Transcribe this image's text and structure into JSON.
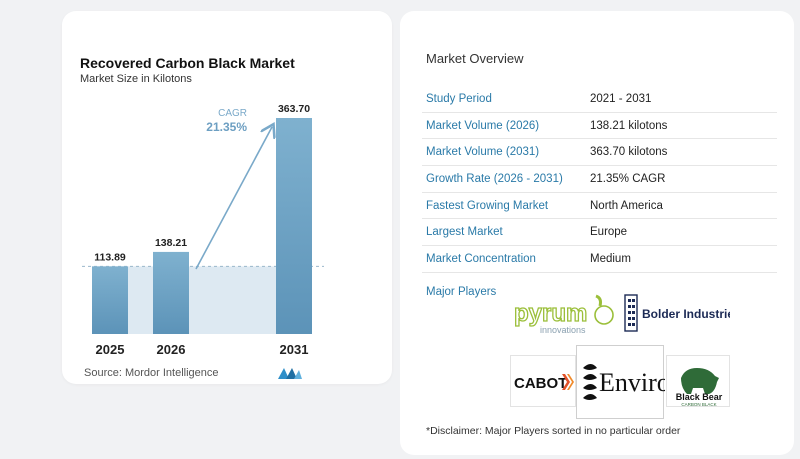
{
  "chart": {
    "title": "Recovered Carbon Black Market",
    "subtitle": "Market Size in Kilotons",
    "cagr_label": "CAGR",
    "cagr_value": "21.35%",
    "source": "Source:  Mordor Intelligence"
  },
  "chart_data": {
    "type": "bar",
    "categories": [
      "2025",
      "2026",
      "2031"
    ],
    "values": [
      113.89,
      138.21,
      363.7
    ],
    "value_labels": [
      "113.89",
      "138.21",
      "363.70"
    ],
    "ylim": [
      0,
      363.7
    ],
    "grid": false,
    "colors": {
      "bar_top": "#7fb1cf",
      "bar_bottom": "#5c93b8",
      "band": "#dde9f2",
      "arrow": "#7aa9c9"
    }
  },
  "overview": {
    "title": "Market Overview",
    "rows": [
      {
        "label": "Study Period",
        "value": "2021 - 2031"
      },
      {
        "label": "Market Volume (2026)",
        "value": "138.21 kilotons"
      },
      {
        "label": "Market Volume (2031)",
        "value": "363.70 kilotons"
      },
      {
        "label": "Growth Rate (2026 - 2031)",
        "value": "21.35% CAGR"
      },
      {
        "label": "Fastest Growing Market",
        "value": "North America"
      },
      {
        "label": "Largest Market",
        "value": "Europe"
      },
      {
        "label": "Market Concentration",
        "value": "Medium"
      }
    ],
    "players_label": "Major Players",
    "disclaimer": "*Disclaimer: Major Players sorted in no particular order"
  },
  "players": {
    "pyrum": "pyrum",
    "pyrum_sub": "innovations",
    "bolder": "Bolder Industries",
    "cabot": "CABOT",
    "enviro": "Enviro",
    "blackbear": "Black Bear",
    "blackbear_sub": "CARBON BLACK"
  }
}
